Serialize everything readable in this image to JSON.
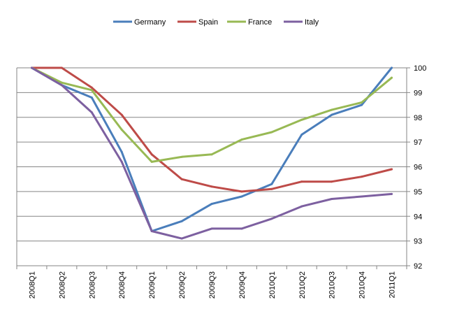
{
  "chart_data": {
    "type": "line",
    "title": "",
    "xlabel": "",
    "ylabel": "",
    "ylim": [
      92,
      100
    ],
    "yticks": [
      92,
      93,
      94,
      95,
      96,
      97,
      98,
      99,
      100
    ],
    "y_axis_side": "right",
    "grid": "horizontal",
    "legend_position": "top",
    "categories": [
      "2008Q1",
      "2008Q2",
      "2008Q3",
      "2008Q4",
      "2009Q1",
      "2009Q2",
      "2009Q3",
      "2009Q4",
      "2010Q1",
      "2010Q2",
      "2010Q3",
      "2010Q4",
      "2011Q1"
    ],
    "series": [
      {
        "name": "Germany",
        "color": "#4a7ebb",
        "values": [
          100,
          99.3,
          98.8,
          96.6,
          93.4,
          93.8,
          94.5,
          94.8,
          95.3,
          97.3,
          98.1,
          98.5,
          100
        ]
      },
      {
        "name": "Spain",
        "color": "#be4b48",
        "values": [
          100,
          100,
          99.2,
          98.1,
          96.5,
          95.5,
          95.2,
          95.0,
          95.1,
          95.4,
          95.4,
          95.6,
          95.9
        ]
      },
      {
        "name": "France",
        "color": "#98b954",
        "values": [
          100,
          99.4,
          99.1,
          97.5,
          96.2,
          96.4,
          96.5,
          97.1,
          97.4,
          97.9,
          98.3,
          98.6,
          99.6
        ]
      },
      {
        "name": "Italy",
        "color": "#7d60a0",
        "values": [
          100,
          99.3,
          98.2,
          96.2,
          93.4,
          93.1,
          93.5,
          93.5,
          93.9,
          94.4,
          94.7,
          94.8,
          94.9
        ]
      }
    ]
  }
}
